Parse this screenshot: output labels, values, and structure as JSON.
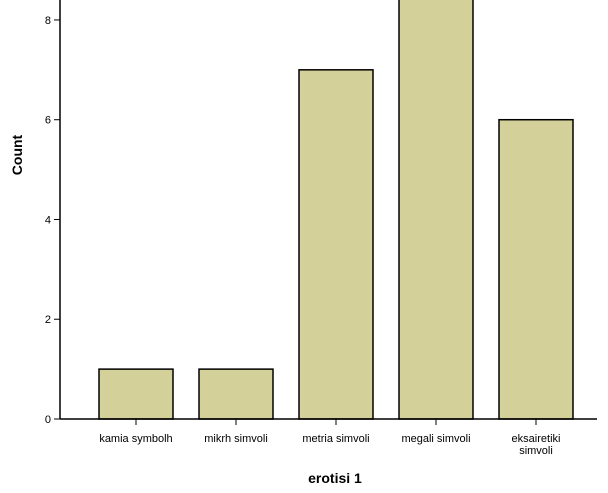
{
  "chart_data": {
    "type": "bar",
    "title": "",
    "xlabel": "erotisi 1",
    "ylabel": "Count",
    "categories": [
      "kamia symbolh",
      "mikrh simvoli",
      "metria simvoli",
      "megali simvoli",
      "eksairetiki simvoli"
    ],
    "category_lines": [
      [
        "kamia symbolh"
      ],
      [
        "mikrh simvoli"
      ],
      [
        "metria simvoli"
      ],
      [
        "megali simvoli"
      ],
      [
        "eksairetiki",
        "simvoli"
      ]
    ],
    "values": [
      1,
      1,
      7,
      9,
      6
    ],
    "ylim": [
      0,
      8.4
    ],
    "yticks": [
      0,
      2,
      4,
      6,
      8
    ],
    "grid": false,
    "bar_color": "#d4d09a",
    "bar_edge_color": "#000000"
  }
}
